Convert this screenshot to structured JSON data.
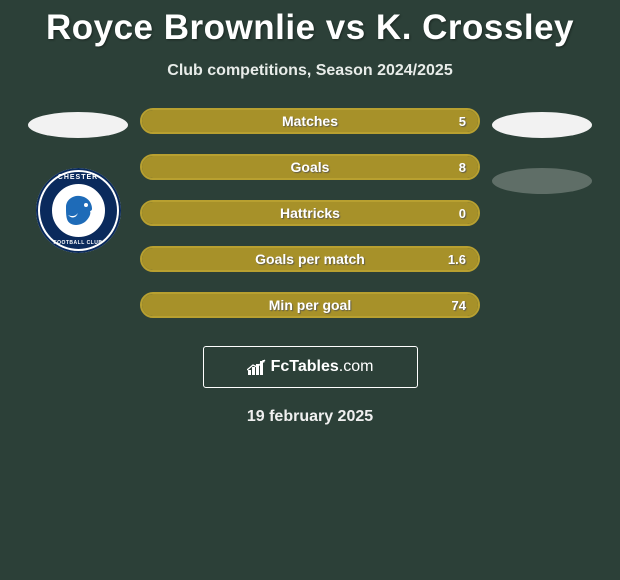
{
  "title": "Royce Brownlie vs K. Crossley",
  "subtitle": "Club competitions, Season 2024/2025",
  "date": "19 february 2025",
  "left_badge": {
    "top": "CHESTER",
    "bottom": "FOOTBALL CLUB"
  },
  "colors": {
    "background": "#2c4038",
    "bar_olive": "#a79129",
    "bar_olive_border": "#b8a030",
    "pill_white": "#f2f2f2",
    "pill_gray": "#5f6e67",
    "badge_ring": "#0a2a5c",
    "badge_lion": "#1e6bb8"
  },
  "stats": [
    {
      "label": "Matches",
      "value": "5",
      "fill_pct": 100,
      "bar_color": "#a79129",
      "border_color": "#b8a030"
    },
    {
      "label": "Goals",
      "value": "8",
      "fill_pct": 100,
      "bar_color": "#a79129",
      "border_color": "#b8a030"
    },
    {
      "label": "Hattricks",
      "value": "0",
      "fill_pct": 100,
      "bar_color": "#a79129",
      "border_color": "#b8a030"
    },
    {
      "label": "Goals per match",
      "value": "1.6",
      "fill_pct": 100,
      "bar_color": "#a79129",
      "border_color": "#b8a030"
    },
    {
      "label": "Min per goal",
      "value": "74",
      "fill_pct": 100,
      "bar_color": "#a79129",
      "border_color": "#b8a030"
    }
  ],
  "logo": {
    "brand": "FcTables",
    "domain": ".com"
  }
}
